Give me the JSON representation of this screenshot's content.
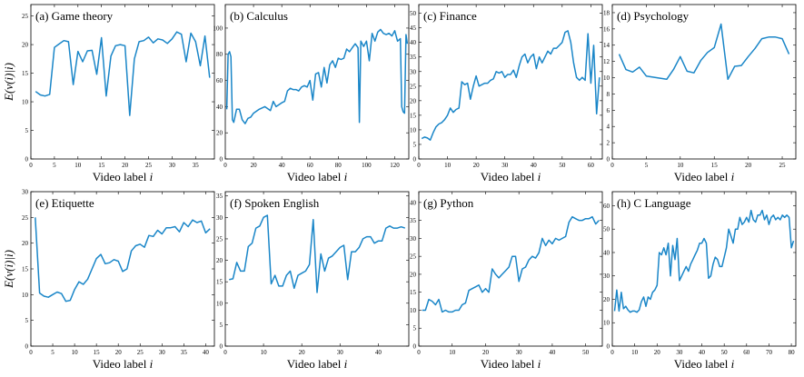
{
  "ylabel": "E(v(i)|i)",
  "line_color": "#1a86c8",
  "chart_data": [
    {
      "type": "line",
      "title": "(a) Game theory",
      "xlabel": "Video label i",
      "xlim": [
        0,
        39
      ],
      "ylim": [
        0,
        27
      ],
      "xticks": [
        0,
        5,
        10,
        15,
        20,
        25,
        30,
        35
      ],
      "yticks": [
        0,
        5,
        10,
        15,
        20,
        25
      ],
      "x": [
        1,
        2,
        3,
        4,
        5,
        6,
        7,
        8,
        9,
        10,
        11,
        12,
        13,
        14,
        15,
        16,
        17,
        18,
        19,
        20,
        21,
        22,
        23,
        24,
        25,
        26,
        27,
        28,
        29,
        30,
        31,
        32,
        33,
        34,
        35,
        36,
        37,
        38
      ],
      "y": [
        11.8,
        11.2,
        11.0,
        11.3,
        19.5,
        20.1,
        20.7,
        20.5,
        13.0,
        18.8,
        17.0,
        18.9,
        19.0,
        14.8,
        21.2,
        11.0,
        18.0,
        19.8,
        20.0,
        19.8,
        7.6,
        17.5,
        20.5,
        20.7,
        21.3,
        20.3,
        21.0,
        20.8,
        20.2,
        21.0,
        22.2,
        21.8,
        17.0,
        22.0,
        20.5,
        16.3,
        21.5,
        14.2
      ]
    },
    {
      "type": "line",
      "title": "(b) Calculus",
      "xlabel": "Video label i",
      "xlim": [
        0,
        130
      ],
      "ylim": [
        0,
        118
      ],
      "xticks": [
        0,
        20,
        40,
        60,
        80,
        100,
        120
      ],
      "yticks": [
        0,
        20,
        40,
        60,
        80,
        100
      ],
      "x": [
        1,
        2,
        3,
        4,
        5,
        6,
        8,
        10,
        12,
        14,
        16,
        18,
        20,
        24,
        28,
        32,
        34,
        36,
        40,
        42,
        44,
        46,
        48,
        50,
        52,
        54,
        56,
        58,
        60,
        62,
        64,
        66,
        68,
        70,
        72,
        74,
        76,
        78,
        80,
        82,
        84,
        86,
        88,
        90,
        92,
        94,
        95,
        96,
        98,
        100,
        102,
        104,
        106,
        108,
        110,
        112,
        114,
        116,
        118,
        120,
        122,
        124,
        125,
        126,
        127,
        128,
        129
      ],
      "y": [
        38,
        80,
        82,
        78,
        30,
        28,
        38,
        38,
        30,
        27,
        31,
        32,
        35,
        38,
        40,
        37,
        44,
        40,
        43,
        44,
        52,
        54,
        53,
        53,
        52,
        55,
        56,
        55,
        60,
        45,
        65,
        66,
        55,
        70,
        58,
        72,
        75,
        70,
        77,
        76,
        77,
        84,
        82,
        85,
        88,
        85,
        28,
        90,
        86,
        90,
        75,
        96,
        90,
        97,
        99,
        96,
        95,
        96,
        94,
        98,
        90,
        92,
        40,
        36,
        35,
        95,
        88
      ]
    },
    {
      "type": "line",
      "title": "(c) Finance",
      "xlabel": "Video label i",
      "xlim": [
        0,
        64
      ],
      "ylim": [
        0,
        53
      ],
      "xticks": [
        0,
        10,
        20,
        30,
        40,
        50,
        60
      ],
      "yticks": [
        0,
        5,
        10,
        15,
        20,
        25,
        30,
        35,
        40,
        45,
        50
      ],
      "x": [
        1,
        2,
        3,
        4,
        5,
        6,
        7,
        8,
        9,
        10,
        11,
        12,
        13,
        14,
        15,
        16,
        17,
        18,
        19,
        20,
        21,
        22,
        23,
        24,
        25,
        26,
        27,
        28,
        29,
        30,
        31,
        32,
        33,
        34,
        35,
        36,
        37,
        38,
        39,
        40,
        41,
        42,
        43,
        44,
        45,
        46,
        47,
        48,
        49,
        50,
        51,
        52,
        53,
        54,
        55,
        56,
        57,
        58,
        59,
        60,
        61,
        62,
        63
      ],
      "y": [
        7,
        7.5,
        7.2,
        6.5,
        9,
        11,
        12,
        12.5,
        13.5,
        15,
        17.5,
        16,
        17,
        17.5,
        26.5,
        25.5,
        26,
        20.5,
        25,
        28.5,
        25,
        25.5,
        26,
        26,
        27,
        27.5,
        30,
        29.5,
        30,
        28,
        29,
        29,
        30.5,
        28,
        32,
        35,
        36,
        33,
        35,
        36,
        31,
        35,
        33,
        35,
        37,
        36,
        38,
        38,
        39,
        40,
        43.5,
        44,
        40,
        33,
        28,
        27,
        28,
        27,
        43,
        26,
        39,
        15.5,
        28
      ]
    },
    {
      "type": "line",
      "title": "(d) Psychology",
      "xlabel": "Video label i",
      "xlim": [
        0,
        27
      ],
      "ylim": [
        0,
        19
      ],
      "xticks": [
        0,
        5,
        10,
        15,
        20,
        25
      ],
      "yticks": [
        0,
        2,
        4,
        6,
        8,
        10,
        12,
        14,
        16,
        18
      ],
      "x": [
        1,
        2,
        3,
        4,
        5,
        8,
        9,
        10,
        11,
        12,
        13,
        14,
        15,
        16,
        17,
        18,
        19,
        20,
        21,
        22,
        23,
        24,
        25,
        26
      ],
      "y": [
        12.9,
        11.0,
        10.7,
        11.3,
        10.2,
        9.8,
        11.0,
        12.6,
        10.8,
        10.6,
        12.1,
        13.1,
        13.7,
        16.6,
        9.8,
        11.4,
        11.5,
        12.6,
        13.6,
        14.8,
        15.0,
        15.0,
        14.8,
        12.9
      ]
    },
    {
      "type": "line",
      "title": "(e) Etiquette",
      "xlabel": "Video label i",
      "xlim": [
        0,
        42
      ],
      "ylim": [
        0,
        30
      ],
      "xticks": [
        0,
        5,
        10,
        15,
        20,
        25,
        30,
        35,
        40
      ],
      "yticks": [
        0,
        5,
        10,
        15,
        20,
        25,
        30
      ],
      "x": [
        1,
        2,
        3,
        4,
        5,
        6,
        7,
        8,
        9,
        10,
        11,
        12,
        13,
        14,
        15,
        16,
        17,
        18,
        19,
        20,
        21,
        22,
        23,
        24,
        25,
        26,
        27,
        28,
        29,
        30,
        31,
        32,
        33,
        34,
        35,
        36,
        37,
        38,
        39,
        40,
        41
      ],
      "y": [
        25,
        10.3,
        9.7,
        9.5,
        10,
        10.5,
        10.2,
        8.7,
        8.9,
        11,
        12.5,
        12,
        13,
        15,
        17,
        17.8,
        16,
        16.2,
        16.8,
        16.5,
        14.5,
        15,
        18.5,
        19.5,
        19.8,
        19.2,
        21.5,
        21.3,
        22.5,
        21.8,
        23,
        23,
        23.2,
        22.2,
        24,
        23.2,
        24.5,
        24,
        24.3,
        22,
        22.8
      ]
    },
    {
      "type": "line",
      "title": "(f) Spoken English",
      "xlabel": "Video label i",
      "xlim": [
        0,
        48
      ],
      "ylim": [
        0,
        36
      ],
      "xticks": [
        0,
        10,
        20,
        30,
        40
      ],
      "yticks": [
        0,
        5,
        10,
        15,
        20,
        25,
        30,
        35
      ],
      "x": [
        1,
        2,
        3,
        4,
        5,
        6,
        7,
        8,
        9,
        10,
        11,
        12,
        13,
        14,
        15,
        16,
        17,
        18,
        19,
        20,
        21,
        22,
        23,
        24,
        25,
        26,
        27,
        28,
        29,
        30,
        31,
        32,
        33,
        34,
        35,
        36,
        37,
        38,
        39,
        40,
        41,
        42,
        43,
        44,
        45,
        46,
        47
      ],
      "y": [
        15.5,
        15.7,
        19.5,
        17.5,
        17.5,
        23.2,
        24,
        27.5,
        28,
        30,
        30.5,
        14.5,
        16.5,
        14,
        14,
        16.5,
        17.5,
        13.5,
        16.5,
        17,
        17.5,
        19,
        29.5,
        12.5,
        21.5,
        17.5,
        20.5,
        21,
        22,
        23,
        23.5,
        15.5,
        22,
        22,
        23,
        25,
        25.5,
        25.5,
        24,
        24.5,
        24.5,
        27.5,
        28,
        27.5,
        27.5,
        27.8,
        27.5
      ]
    },
    {
      "type": "line",
      "title": "(g) Python",
      "xlabel": "Video label i",
      "xlim": [
        0,
        55
      ],
      "ylim": [
        0,
        43
      ],
      "xticks": [
        0,
        10,
        20,
        30,
        40,
        50
      ],
      "yticks": [
        0,
        5,
        10,
        15,
        20,
        25,
        30,
        35,
        40
      ],
      "x": [
        1,
        2,
        3,
        4,
        5,
        6,
        7,
        8,
        9,
        10,
        11,
        12,
        13,
        14,
        15,
        16,
        17,
        18,
        19,
        20,
        21,
        22,
        23,
        24,
        25,
        26,
        27,
        28,
        29,
        30,
        31,
        32,
        33,
        34,
        35,
        36,
        37,
        38,
        39,
        40,
        41,
        42,
        43,
        44,
        45,
        46,
        47,
        48,
        49,
        50,
        51,
        52,
        53,
        54
      ],
      "y": [
        10,
        10,
        13,
        12.5,
        11.5,
        13,
        9.5,
        10,
        9.5,
        9.5,
        10,
        10,
        11.5,
        12,
        15.5,
        16,
        16.5,
        17,
        15,
        16,
        15,
        21.5,
        20,
        19,
        20,
        21,
        22,
        25,
        25,
        18,
        21.5,
        22,
        24,
        25,
        24.5,
        26,
        30,
        28,
        29.5,
        28.5,
        30,
        29.5,
        30,
        30.5,
        34.5,
        36,
        35.5,
        35,
        35,
        35.5,
        35.5,
        36,
        34,
        35
      ]
    },
    {
      "type": "line",
      "title": "(h) C Language",
      "xlabel": "Video label i",
      "xlim": [
        0,
        82
      ],
      "ylim": [
        0,
        66
      ],
      "xticks": [
        0,
        10,
        20,
        30,
        40,
        50,
        60,
        70,
        80
      ],
      "yticks": [
        0,
        10,
        20,
        30,
        40,
        50,
        60
      ],
      "x": [
        1,
        2,
        3,
        4,
        5,
        6,
        7,
        8,
        9,
        10,
        11,
        12,
        13,
        14,
        15,
        16,
        17,
        18,
        19,
        20,
        21,
        22,
        23,
        24,
        25,
        26,
        27,
        28,
        29,
        30,
        31,
        32,
        33,
        34,
        35,
        36,
        37,
        38,
        39,
        40,
        41,
        42,
        43,
        44,
        45,
        46,
        47,
        48,
        49,
        50,
        51,
        52,
        53,
        54,
        55,
        56,
        57,
        58,
        59,
        60,
        61,
        62,
        63,
        64,
        65,
        66,
        67,
        68,
        69,
        70,
        71,
        72,
        73,
        74,
        75,
        76,
        77,
        78,
        79,
        80,
        81
      ],
      "y": [
        15,
        24,
        15,
        23,
        16,
        17,
        15.5,
        14.5,
        15,
        15,
        14.5,
        15.5,
        19,
        21,
        17,
        21,
        20,
        23,
        24,
        26,
        40,
        39,
        42,
        39,
        44,
        30,
        43,
        37,
        46,
        28,
        30,
        32,
        34,
        32,
        35,
        37,
        39,
        41,
        44,
        44,
        46,
        44,
        29,
        30,
        35,
        38,
        37,
        34,
        34,
        38,
        42,
        50,
        47,
        44,
        50,
        50,
        55,
        52,
        53,
        55,
        53,
        58,
        54,
        53,
        56,
        56,
        58,
        54,
        56,
        52,
        55,
        56,
        54,
        55,
        54,
        56,
        55,
        56,
        55,
        42,
        45
      ]
    }
  ]
}
